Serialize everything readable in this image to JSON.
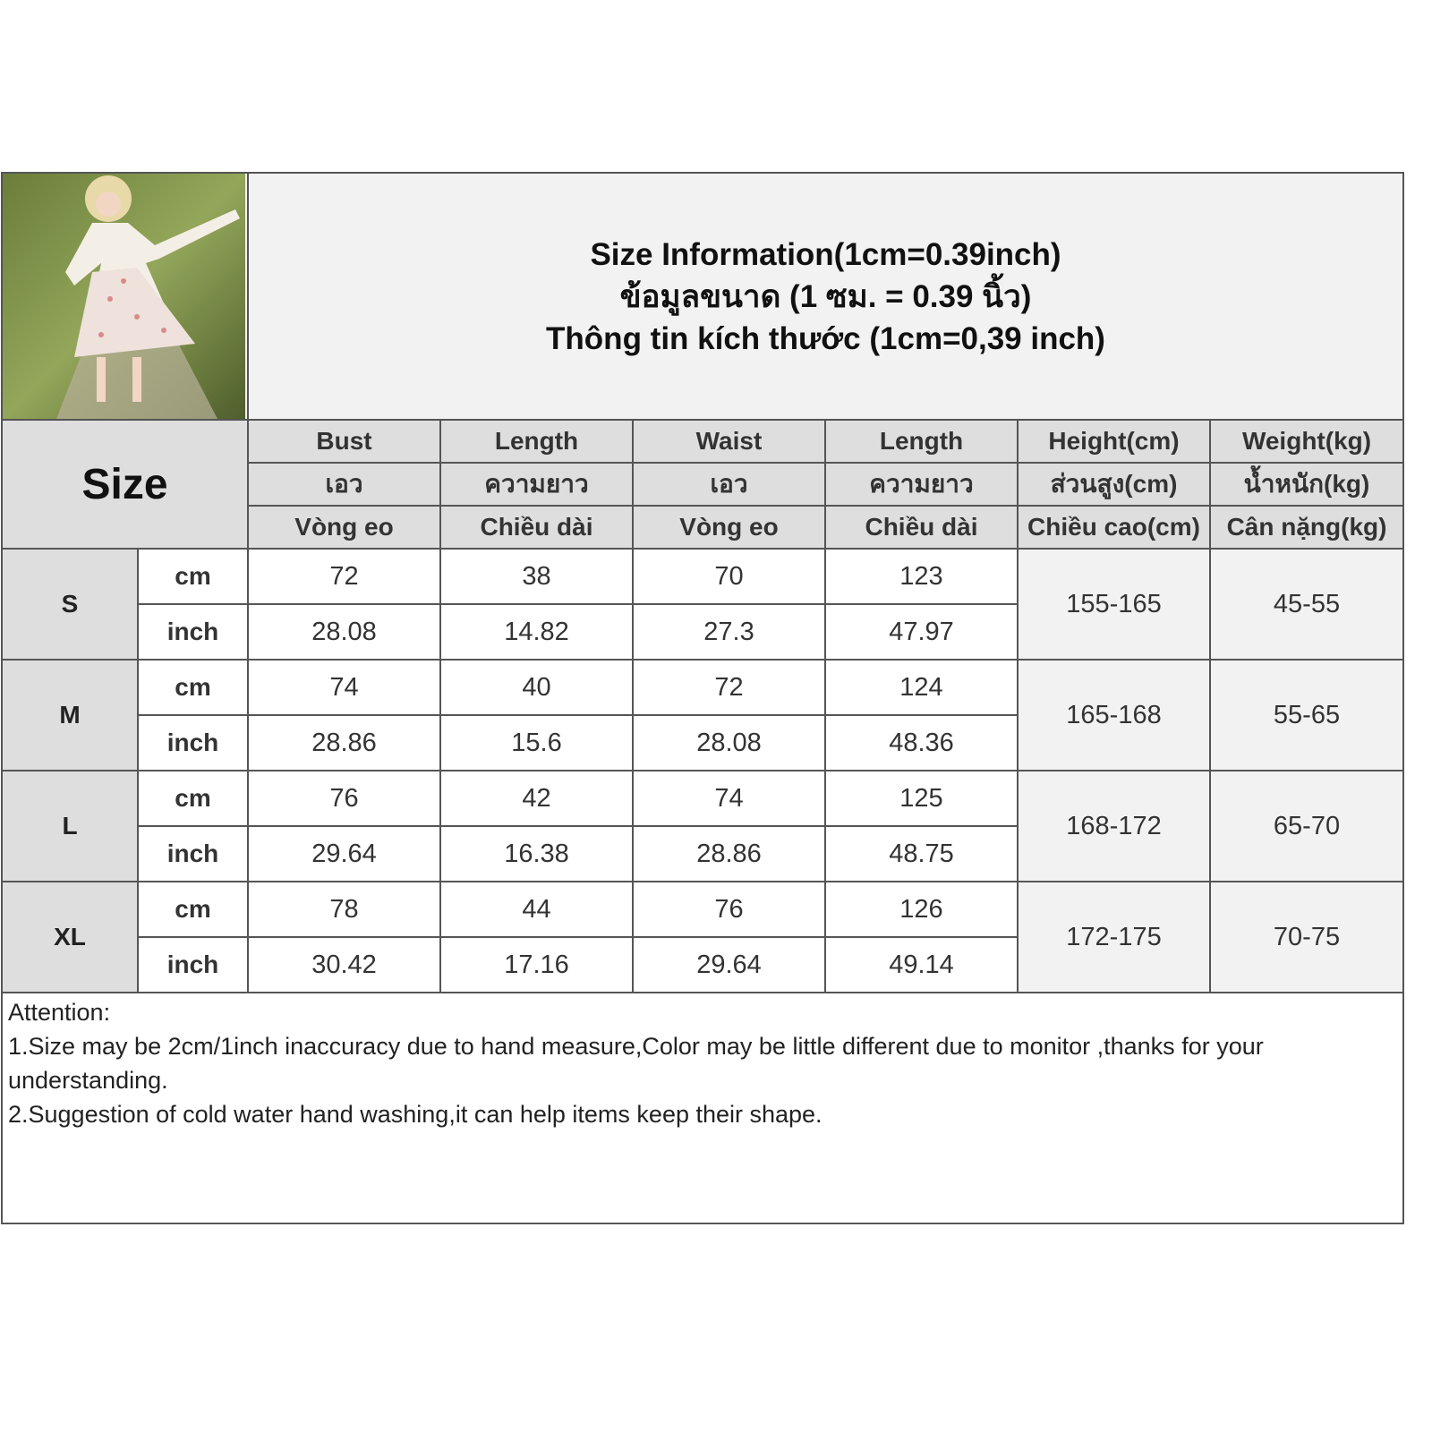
{
  "title": {
    "line1": "Size Information(1cm=0.39inch)",
    "line2": "ข้อมูลขนาด (1 ซม. = 0.39 นิ้ว)",
    "line3": "Thông tin kích thước (1cm=0,39 inch)"
  },
  "size_label": "Size",
  "columns": [
    {
      "en": "Bust",
      "th": "เอว",
      "vi": "Vòng eo"
    },
    {
      "en": "Length",
      "th": "ความยาว",
      "vi": "Chiều dài"
    },
    {
      "en": "Waist",
      "th": "เอว",
      "vi": "Vòng eo"
    },
    {
      "en": "Length",
      "th": "ความยาว",
      "vi": "Chiều dài"
    },
    {
      "en": "Height(cm)",
      "th": "ส่วนสูง(cm)",
      "vi": "Chiều cao(cm)"
    },
    {
      "en": "Weight(kg)",
      "th": "น้ำหนัก(kg)",
      "vi": "Cân nặng(kg)"
    }
  ],
  "units": {
    "cm": "cm",
    "inch": "inch"
  },
  "rows": [
    {
      "size": "S",
      "cm": [
        "72",
        "38",
        "70",
        "123"
      ],
      "inch": [
        "28.08",
        "14.82",
        "27.3",
        "47.97"
      ],
      "height": "155-165",
      "weight": "45-55"
    },
    {
      "size": "M",
      "cm": [
        "74",
        "40",
        "72",
        "124"
      ],
      "inch": [
        "28.86",
        "15.6",
        "28.08",
        "48.36"
      ],
      "height": "165-168",
      "weight": "55-65"
    },
    {
      "size": "L",
      "cm": [
        "76",
        "42",
        "74",
        "125"
      ],
      "inch": [
        "29.64",
        "16.38",
        "28.86",
        "48.75"
      ],
      "height": "168-172",
      "weight": "65-70"
    },
    {
      "size": "XL",
      "cm": [
        "78",
        "44",
        "76",
        "126"
      ],
      "inch": [
        "30.42",
        "17.16",
        "29.64",
        "49.14"
      ],
      "height": "172-175",
      "weight": "70-75"
    }
  ],
  "notes": {
    "heading": "Attention:",
    "line1": "1.Size may be 2cm/1inch inaccuracy due to hand measure,Color may be little different due to monitor ,thanks for your understanding.",
    "line2": "2.Suggestion of cold water hand washing,it can help items keep their shape."
  }
}
